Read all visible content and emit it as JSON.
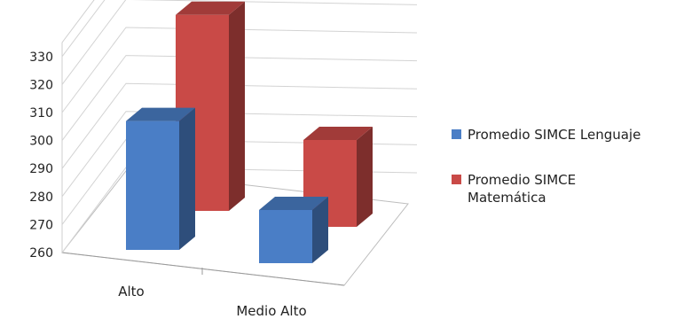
{
  "chart_data": {
    "type": "bar",
    "style": "3d-clustered-column",
    "categories": [
      "Alto",
      "Medio Alto"
    ],
    "series": [
      {
        "name": "Promedio SIMCE Lenguaje",
        "values": [
          306,
          279
        ],
        "color": "#4a7ec6"
      },
      {
        "name": "Promedio SIMCE Matemática",
        "values": [
          330,
          291
        ],
        "color": "#c94a47"
      }
    ],
    "yticks": [
      260,
      270,
      280,
      290,
      300,
      310,
      320,
      330
    ],
    "ylim": [
      260,
      335
    ],
    "grid": true,
    "legend_position": "right"
  }
}
